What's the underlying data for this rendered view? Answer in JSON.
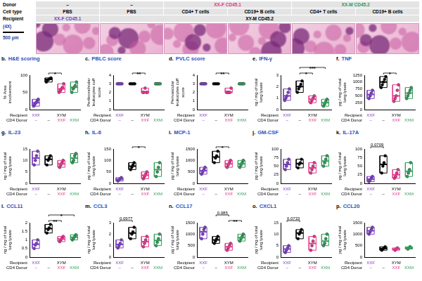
{
  "header": {
    "row_labels": [
      "Donor",
      "Cell type",
      "Recipient"
    ],
    "rows": [
      [
        {
          "text": "–"
        },
        {
          "text": "–"
        },
        {
          "text": "XX-F CD45.1",
          "span": 2,
          "color": "#e6358b"
        },
        {
          "text": "XX-M CD45.2",
          "span": 2,
          "color": "#2e9e5a"
        }
      ],
      [
        {
          "text": "PBS"
        },
        {
          "text": "PBS"
        },
        {
          "text": "CD4+ T cells"
        },
        {
          "text": "CD19+ B cells"
        },
        {
          "text": "CD4+ T cells"
        },
        {
          "text": "CD19+ B cells"
        }
      ],
      [
        {
          "text": "XX-F CD45.1",
          "color": "#7b3fc4"
        },
        {
          "text": "XY-M CD45.2",
          "span": 5,
          "color": "#000000"
        }
      ]
    ]
  },
  "histology": {
    "magnification": "(4X)",
    "scale_bar": "500 μm",
    "panels": 6
  },
  "row_labels": [
    "Recipient",
    "CD4 Donor"
  ],
  "groups": [
    {
      "recipient": "XXF",
      "cd4_donor": "–",
      "color": "#7b3fc4"
    },
    {
      "recipient": "XYM",
      "cd4_donor": "–",
      "color": "#000000"
    },
    {
      "recipient": "XYM",
      "cd4_donor": "XXF",
      "color": "#e6358b"
    },
    {
      "recipient": "XYM",
      "cd4_donor": "XXM",
      "color": "#2e9e5a"
    }
  ],
  "chart_data": [
    {
      "type": "box",
      "letter": "b.",
      "title": "H&E scoring",
      "y_label": "% Area involvement",
      "ylim": [
        0,
        100
      ],
      "yticks": [
        0,
        50,
        100
      ],
      "values": [
        [
          10,
          15,
          20,
          25,
          30
        ],
        [
          80,
          85,
          88,
          90,
          92
        ],
        [
          50,
          55,
          60,
          65,
          75
        ],
        [
          50,
          60,
          65,
          70,
          80
        ]
      ],
      "annotations": [
        {
          "text": "*",
          "from": 1,
          "to": 2
        }
      ]
    },
    {
      "type": "box",
      "letter": "c.",
      "title": "PBLC score",
      "y_label": "Peribronchiolar leukocytes cuff score",
      "ylim": [
        0,
        4
      ],
      "yticks": [
        0,
        1,
        2,
        3,
        4
      ],
      "values": [
        [
          3,
          3,
          3,
          3,
          3
        ],
        [
          3,
          3,
          3,
          3,
          3
        ],
        [
          2,
          2,
          2.5,
          2,
          2
        ],
        [
          3,
          3,
          3,
          3,
          3
        ]
      ],
      "annotations": [
        {
          "text": "**",
          "from": 1,
          "to": 2
        }
      ]
    },
    {
      "type": "box",
      "letter": "d.",
      "title": "PVLC score",
      "y_label": "Perivascular leukocytes cuff score",
      "ylim": [
        0,
        4
      ],
      "yticks": [
        0,
        1,
        2,
        3,
        4
      ],
      "values": [
        [
          3,
          3,
          3,
          3,
          3
        ],
        [
          3,
          3,
          3,
          3,
          3
        ],
        [
          2,
          2,
          2,
          2,
          2.5
        ],
        [
          3,
          3,
          3,
          3,
          3
        ]
      ],
      "annotations": [
        {
          "text": "**",
          "from": 1,
          "to": 2
        }
      ]
    },
    {
      "type": "box",
      "letter": "e.",
      "title": "IFN-γ",
      "y_label": "ng / mg of total lung lysate",
      "ylim": [
        0,
        3
      ],
      "yticks": [
        0,
        1,
        2,
        3
      ],
      "values": [
        [
          0.8,
          1.0,
          1.2,
          1.5,
          1.8
        ],
        [
          1.5,
          1.8,
          2.0,
          2.2,
          2.5
        ],
        [
          0.6,
          0.8,
          1.0,
          1.2
        ],
        [
          0.3,
          0.5,
          0.7,
          0.9
        ]
      ],
      "annotations": [
        {
          "text": "*",
          "from": 1,
          "to": 2
        },
        {
          "text": "***",
          "from": 1,
          "to": 3
        }
      ]
    },
    {
      "type": "box",
      "letter": "f.",
      "title": "TNF",
      "y_label": "pg / mg of total lung lysate",
      "ylim": [
        0,
        1250
      ],
      "yticks": [
        0,
        250,
        500,
        750,
        1000,
        1250
      ],
      "values": [
        [
          400,
          500,
          600,
          700
        ],
        [
          800,
          900,
          1000,
          1100,
          1200
        ],
        [
          300,
          400,
          500,
          700,
          900
        ],
        [
          400,
          500,
          600,
          700,
          800
        ]
      ],
      "annotations": [
        {
          "text": "*",
          "from": 1,
          "to": 2
        }
      ]
    },
    {
      "type": "box",
      "letter": "g.",
      "title": "IL-23",
      "y_label": "ng / mg of total lung lysate",
      "ylim": [
        0,
        15
      ],
      "yticks": [
        0,
        5,
        10,
        15
      ],
      "values": [
        [
          8,
          10,
          12,
          14
        ],
        [
          8,
          10,
          11,
          12
        ],
        [
          7,
          8,
          9,
          10
        ],
        [
          9,
          10,
          12,
          13
        ]
      ]
    },
    {
      "type": "box",
      "letter": "h.",
      "title": "IL-6",
      "y_label": "pg / mg of total lung lysate",
      "ylim": [
        0,
        150
      ],
      "yticks": [
        0,
        50,
        100,
        150
      ],
      "values": [
        [
          10,
          15,
          20,
          25
        ],
        [
          60,
          70,
          80,
          90
        ],
        [
          20,
          30,
          40,
          50
        ],
        [
          30,
          50,
          70,
          90
        ]
      ],
      "annotations": [
        {
          "text": "*",
          "from": 1,
          "to": 2
        }
      ]
    },
    {
      "type": "box",
      "letter": "i.",
      "title": "MCP-1",
      "y_label": "pg / mg of total lung lysate",
      "ylim": [
        0,
        1500
      ],
      "yticks": [
        0,
        500,
        1000,
        1500
      ],
      "values": [
        [
          400,
          500,
          600,
          700
        ],
        [
          900,
          1100,
          1200,
          1400
        ],
        [
          700,
          800,
          900,
          1000
        ],
        [
          700,
          800,
          900,
          1000
        ]
      ],
      "annotations": [
        {
          "text": "*",
          "from": 1,
          "to": 2
        }
      ]
    },
    {
      "type": "box",
      "letter": "j.",
      "title": "GM-CSF",
      "y_label": "pg / mg of total lung lysate",
      "ylim": [
        0,
        100
      ],
      "yticks": [
        0,
        25,
        50,
        75,
        100
      ],
      "values": [
        [
          40,
          50,
          60,
          70
        ],
        [
          45,
          55,
          60,
          70
        ],
        [
          30,
          40,
          50,
          60
        ],
        [
          50,
          60,
          70,
          80
        ]
      ]
    },
    {
      "type": "box",
      "letter": "k.",
      "title": "IL-17A",
      "y_label": "pg / mg of total lung lysate",
      "ylim": [
        0,
        100
      ],
      "yticks": [
        0,
        25,
        50,
        75,
        100
      ],
      "values": [
        [
          5,
          10,
          15,
          20
        ],
        [
          30,
          50,
          60,
          80
        ],
        [
          15,
          20,
          30,
          40
        ],
        [
          20,
          30,
          40,
          60
        ]
      ],
      "annotations": [
        {
          "text": "0.0709",
          "from": 0,
          "to": 1
        }
      ]
    },
    {
      "type": "box",
      "letter": "l.",
      "title": "CCL11",
      "y_label": "ng / mg of total lung lysate",
      "ylim": [
        0,
        2
      ],
      "yticks": [
        0,
        0.5,
        1,
        1.5,
        2
      ],
      "values": [
        [
          0.5,
          0.7,
          0.8,
          1.0
        ],
        [
          1.4,
          1.6,
          1.7,
          1.9
        ],
        [
          0.9,
          1.0,
          1.1,
          1.2
        ],
        [
          1.0,
          1.1,
          1.2,
          1.3
        ]
      ],
      "annotations": [
        {
          "text": "**",
          "from": 1,
          "to": 2
        },
        {
          "text": "*",
          "from": 1,
          "to": 3
        }
      ]
    },
    {
      "type": "box",
      "letter": "m.",
      "title": "CCL3",
      "y_label": "ng / mg of total lung lysate",
      "ylim": [
        0,
        3
      ],
      "yticks": [
        0,
        1,
        2,
        3
      ],
      "values": [
        [
          0.8,
          1.0,
          1.2,
          1.5
        ],
        [
          1.6,
          2.0,
          2.2,
          2.6
        ],
        [
          0.9,
          1.2,
          1.5,
          1.8
        ],
        [
          1.0,
          1.3,
          1.6,
          2.0
        ]
      ],
      "annotations": [
        {
          "text": "0.0977",
          "from": 0,
          "to": 1
        }
      ]
    },
    {
      "type": "box",
      "letter": "n.",
      "title": "CCL17",
      "y_label": "pg / mg of total lung lysate",
      "ylim": [
        0,
        1500
      ],
      "yticks": [
        0,
        500,
        1000,
        1500
      ],
      "values": [
        [
          800,
          1000,
          1200,
          1300
        ],
        [
          600,
          700,
          800,
          900
        ],
        [
          300,
          400,
          500,
          600
        ],
        [
          700,
          800,
          900,
          1000
        ]
      ],
      "annotations": [
        {
          "text": "**",
          "from": 2,
          "to": 3
        },
        {
          "text": "0.085",
          "from": 1,
          "to": 2
        }
      ]
    },
    {
      "type": "box",
      "letter": "o.",
      "title": "CXCL1",
      "y_label": "pg / mg of total lung lysate",
      "ylim": [
        0,
        15
      ],
      "yticks": [
        0,
        5,
        10,
        15
      ],
      "values": [
        [
          2,
          3,
          4,
          5
        ],
        [
          8,
          10,
          11,
          12
        ],
        [
          3,
          5,
          7,
          9
        ],
        [
          5,
          6,
          8,
          10
        ]
      ],
      "annotations": [
        {
          "text": "0.0733",
          "from": 0,
          "to": 1
        }
      ]
    },
    {
      "type": "box",
      "letter": "p.",
      "title": "CCL20",
      "y_label": "pg / mg of total lung lysate",
      "ylim": [
        0,
        1500
      ],
      "yticks": [
        0,
        500,
        1000,
        1500
      ],
      "values": [
        [
          1000,
          1100,
          1200,
          1300
        ],
        [
          300,
          350,
          400,
          450
        ],
        [
          300,
          350,
          400
        ],
        [
          350,
          400,
          450
        ]
      ]
    }
  ]
}
